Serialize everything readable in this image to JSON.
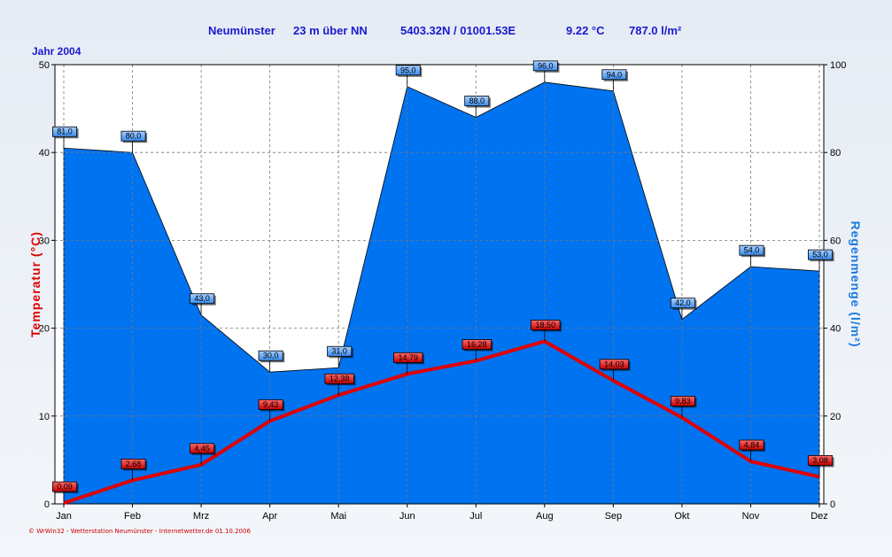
{
  "header": {
    "station": "Neumünster",
    "altitude": "23 m über NN",
    "coordinates": "5403.32N / 01001.53E",
    "mean_temp": "9.22 °C",
    "total_rain": "787.0 l/m²"
  },
  "year_label": "Jahr  2004",
  "footer": "© WrWin32 - Wetterstation Neumünster - Internetwetter.de  01.10.2006",
  "chart_data": {
    "type": "area",
    "categories": [
      "Jan",
      "Feb",
      "Mrz",
      "Apr",
      "Mai",
      "Jun",
      "Jul",
      "Aug",
      "Sep",
      "Okt",
      "Nov",
      "Dez"
    ],
    "series": [
      {
        "type": "area",
        "axis": "right",
        "color": "#0073f0",
        "values": [
          81.0,
          80.0,
          43.0,
          30.0,
          31.0,
          95.0,
          88.0,
          96.0,
          94.0,
          42.0,
          54.0,
          53.0
        ],
        "labels": [
          "81,0",
          "80,0",
          "43,0",
          "30,0",
          "31,0",
          "95,0",
          "88,0",
          "96,0",
          "94,0",
          "42,0",
          "54,0",
          "53,0"
        ]
      },
      {
        "type": "line",
        "axis": "left",
        "color": "#e00000",
        "values": [
          0.09,
          2.68,
          4.45,
          9.43,
          12.38,
          14.79,
          16.28,
          18.5,
          14.03,
          9.83,
          4.84,
          3.08
        ],
        "labels": [
          "0,09",
          "2,68",
          "4,45",
          "9,43",
          "12,38",
          "14,79",
          "16,28",
          "18,50",
          "14,03",
          "9,83",
          "4,84",
          "3,08"
        ]
      }
    ],
    "ylabel_left": "Temperatur  (°C)",
    "ylabel_right": "Regenmenge  (l/m²)",
    "ylim_left": [
      0,
      50
    ],
    "ylim_right": [
      0,
      100
    ],
    "yticks_left": [
      "0",
      "10",
      "20",
      "30",
      "40",
      "50"
    ],
    "yticks_right": [
      "0",
      "20",
      "40",
      "60",
      "80",
      "100"
    ],
    "grid": true
  }
}
